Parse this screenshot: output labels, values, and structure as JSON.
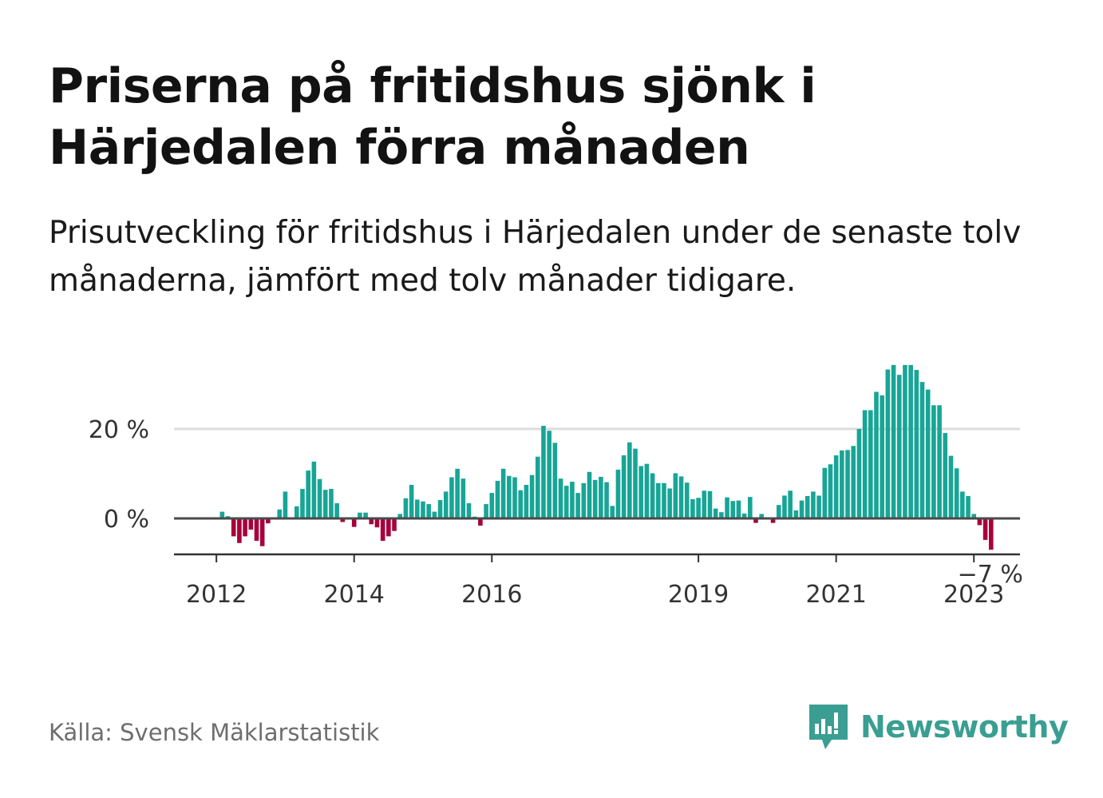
{
  "title": "Priserna på fritidshus sjönk i Härjedalen förra månaden",
  "subtitle": "Prisutveckling för fritidshus i Härjedalen under de senaste tolv månaderna, jämfört med tolv månader tidigare.",
  "source": "Källa: Svensk Mäklarstatistik",
  "brand": "Newsworthy",
  "colors": {
    "positive": "#17a596",
    "negative": "#a8003b",
    "brand": "#3a9e92",
    "grid": "#dddddd",
    "zero_line": "#4a4a4a"
  },
  "chart_data": {
    "type": "bar",
    "xlabel": "",
    "ylabel": "",
    "x_ticks": [
      "2012",
      "2014",
      "2016",
      "2019",
      "2021",
      "2023"
    ],
    "x_tick_dates": [
      "2012-01",
      "2014-01",
      "2016-01",
      "2019-01",
      "2021-01",
      "2023-01"
    ],
    "y_ticks": [
      0,
      20
    ],
    "y_tick_labels": [
      "0 %",
      "20 %"
    ],
    "ylim": [
      -8,
      38
    ],
    "grid": "horizontal",
    "start_date": "2011-07",
    "end_date": "2023-07",
    "last_label": "−7 %",
    "values": [
      0,
      0,
      0,
      0,
      0,
      0,
      0,
      1.5,
      0.5,
      -4,
      -5.5,
      -4,
      -2.5,
      -5,
      -6.2,
      -1.1,
      0,
      2,
      6,
      0,
      2.7,
      6.6,
      10.7,
      12.7,
      8.8,
      6.4,
      6.6,
      3.4,
      -0.8,
      0,
      -1.9,
      1.3,
      1.3,
      -1.3,
      -2,
      -5,
      -4,
      -2.8,
      1,
      4.5,
      7.5,
      4.2,
      3.8,
      3.2,
      1.5,
      4.1,
      6,
      9.2,
      11.1,
      8.9,
      3.4,
      0.4,
      -1.6,
      3.2,
      5.7,
      8.4,
      11.1,
      9.5,
      9.2,
      6.3,
      7.5,
      9.7,
      13.8,
      20.7,
      19.6,
      16.9,
      8.9,
      7.3,
      8.2,
      5.7,
      7.9,
      10.4,
      8.6,
      9.3,
      8.1,
      2.8,
      10.9,
      14.1,
      17,
      15.6,
      11.7,
      12.2,
      10.1,
      7.9,
      7.9,
      6.7,
      10.1,
      9.4,
      8,
      4.3,
      4.6,
      6.2,
      6.1,
      2.2,
      1.4,
      4.7,
      3.9,
      4,
      1.1,
      4.8,
      -1,
      1,
      0,
      -1,
      3,
      5.1,
      6.2,
      1.8,
      4,
      5,
      6,
      5.1,
      11.3,
      12.1,
      14.1,
      15.2,
      15.3,
      16.2,
      20,
      24.2,
      24.2,
      28.3,
      27.5,
      33.3,
      34.3,
      32.1,
      34.3,
      34.3,
      33.2,
      30.5,
      28.8,
      25.3,
      25.3,
      19.1,
      14,
      11.2,
      6,
      5,
      1,
      -1.5,
      -4.8,
      -7
    ]
  }
}
